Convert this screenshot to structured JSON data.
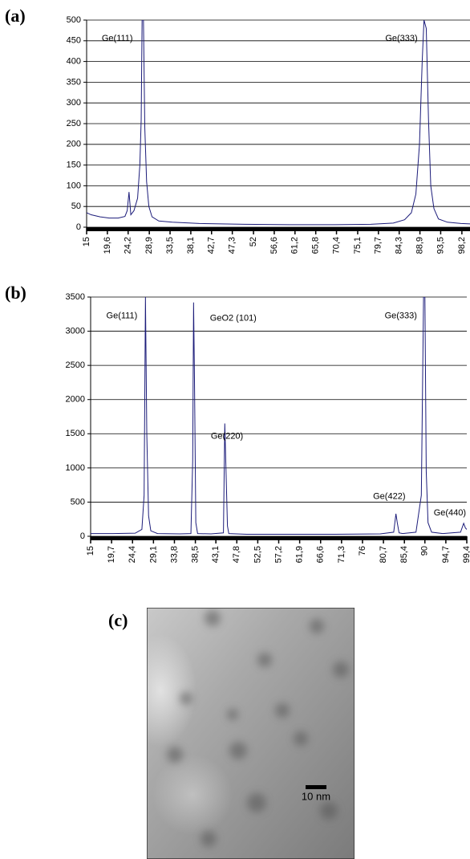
{
  "chart_data": [
    {
      "type": "line",
      "panel_label": "(a)",
      "color": "#1c1c7a",
      "grid": true,
      "x": [
        15,
        16,
        18,
        20,
        22,
        23.5,
        24,
        24.4,
        24.8,
        25.5,
        26.3,
        26.8,
        27.1,
        27.3,
        27.6,
        27.9,
        28.3,
        28.8,
        29.5,
        31,
        34,
        40,
        50,
        60,
        70,
        78,
        83,
        85.5,
        87,
        88,
        88.8,
        89.4,
        89.8,
        90.3,
        90.8,
        91.3,
        92,
        93,
        95,
        98,
        100
      ],
      "values": [
        35,
        30,
        25,
        22,
        22,
        26,
        40,
        85,
        30,
        40,
        70,
        150,
        260,
        500,
        500,
        240,
        110,
        50,
        25,
        15,
        12,
        9,
        7,
        6,
        6,
        7,
        10,
        18,
        35,
        80,
        200,
        400,
        500,
        480,
        260,
        100,
        45,
        20,
        12,
        9,
        8
      ],
      "xlim": [
        15,
        100
      ],
      "xticks": [
        15,
        {
          "value": 19.6,
          "label": "19,6"
        },
        {
          "value": 24.2,
          "label": "24,2"
        },
        {
          "value": 28.9,
          "label": "28,9"
        },
        {
          "value": 33.5,
          "label": "33,5"
        },
        {
          "value": 38.1,
          "label": "38,1"
        },
        {
          "value": 42.7,
          "label": "42,7"
        },
        {
          "value": 47.3,
          "label": "47,3"
        },
        52,
        {
          "value": 56.6,
          "label": "56,6"
        },
        {
          "value": 61.2,
          "label": "61,2"
        },
        {
          "value": 65.8,
          "label": "65,8"
        },
        {
          "value": 70.4,
          "label": "70,4"
        },
        {
          "value": 75.1,
          "label": "75,1"
        },
        {
          "value": 79.7,
          "label": "79,7"
        },
        {
          "value": 84.3,
          "label": "84,3"
        },
        {
          "value": 88.9,
          "label": "88,9"
        },
        {
          "value": 93.5,
          "label": "93,5"
        },
        {
          "value": 98.2,
          "label": "98,2"
        }
      ],
      "ylim": [
        0,
        500
      ],
      "yticks": [
        0,
        50,
        100,
        150,
        200,
        250,
        300,
        350,
        400,
        450,
        500
      ],
      "annotations": [
        {
          "text": "Ge(111)",
          "x": 21.8,
          "y": 455
        },
        {
          "text": "Ge(333)",
          "x": 84.8,
          "y": 455
        }
      ]
    },
    {
      "type": "line",
      "panel_label": "(b)",
      "color": "#1c1c7a",
      "grid": true,
      "x": [
        15,
        20,
        25,
        26.5,
        27,
        27.3,
        27.6,
        28,
        28.5,
        30,
        35,
        37.5,
        37.9,
        38.1,
        38.3,
        38.6,
        39,
        42,
        44.8,
        45.1,
        45.4,
        45.7,
        46,
        50,
        60,
        70,
        80,
        83,
        83.5,
        83.8,
        84.2,
        85,
        88,
        89.2,
        89.7,
        90,
        90.3,
        90.7,
        91.5,
        94,
        98,
        98.7,
        99.1,
        99.4
      ],
      "values": [
        40,
        40,
        45,
        100,
        600,
        3500,
        1500,
        300,
        80,
        40,
        35,
        40,
        1100,
        3420,
        2300,
        200,
        40,
        35,
        50,
        1650,
        900,
        150,
        40,
        30,
        30,
        30,
        35,
        60,
        330,
        200,
        50,
        40,
        60,
        600,
        3500,
        3500,
        950,
        200,
        60,
        40,
        60,
        190,
        120,
        100
      ],
      "xlim": [
        15,
        99.4
      ],
      "xticks": [
        15,
        {
          "value": 19.7,
          "label": "19,7"
        },
        {
          "value": 24.4,
          "label": "24,4"
        },
        {
          "value": 29.1,
          "label": "29,1"
        },
        {
          "value": 33.8,
          "label": "33,8"
        },
        {
          "value": 38.5,
          "label": "38,5"
        },
        {
          "value": 43.1,
          "label": "43,1"
        },
        {
          "value": 47.8,
          "label": "47,8"
        },
        {
          "value": 52.5,
          "label": "52,5"
        },
        {
          "value": 57.2,
          "label": "57,2"
        },
        {
          "value": 61.9,
          "label": "61,9"
        },
        {
          "value": 66.6,
          "label": "66,6"
        },
        {
          "value": 71.3,
          "label": "71,3"
        },
        76,
        {
          "value": 80.7,
          "label": "80,7"
        },
        {
          "value": 85.4,
          "label": "85,4"
        },
        90,
        {
          "value": 94.7,
          "label": "94,7"
        },
        {
          "value": 99.4,
          "label": "99,4"
        }
      ],
      "ylim": [
        0,
        3500
      ],
      "yticks": [
        0,
        500,
        1000,
        1500,
        2000,
        2500,
        3000,
        3500
      ],
      "annotations": [
        {
          "text": "Ge(111)",
          "x": 22,
          "y": 3220
        },
        {
          "text": "GeO2 (101)",
          "x": 47,
          "y": 3190
        },
        {
          "text": "Ge(220)",
          "x": 45.6,
          "y": 1460
        },
        {
          "text": "Ge(422)",
          "x": 82,
          "y": 580
        },
        {
          "text": "Ge(333)",
          "x": 84.6,
          "y": 3220
        },
        {
          "text": "Ge(440)",
          "x": 95.6,
          "y": 340
        }
      ]
    }
  ],
  "image": {
    "panel_label": "(c)",
    "scale_bar_label": "10 nm"
  }
}
